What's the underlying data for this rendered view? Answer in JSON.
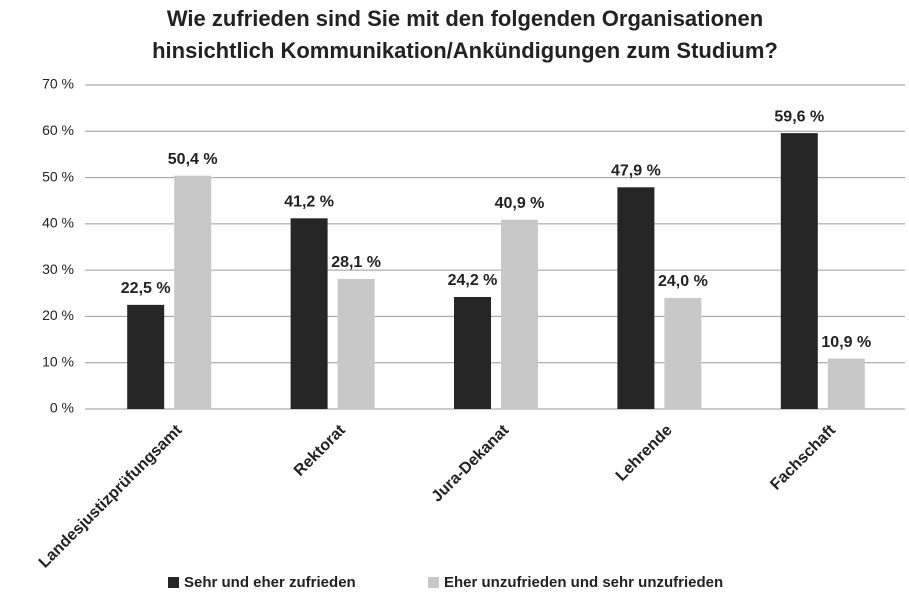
{
  "chart_data": {
    "type": "bar",
    "title": [
      "Wie zufrieden sind Sie mit den folgenden Organisationen",
      "hinsichtlich Kommunikation/Ankündigungen zum Studium?"
    ],
    "categories": [
      "Landesjustizprüfungsamt",
      "Rektorat",
      "Jura-Dekanat",
      "Lehrende",
      "Fachschaft"
    ],
    "series": [
      {
        "name": "Sehr und eher zufrieden",
        "color": "#262626",
        "values": [
          22.5,
          41.2,
          24.2,
          47.9,
          59.6
        ],
        "value_labels": [
          "22,5 %",
          "41,2 %",
          "24,2 %",
          "47,9 %",
          "59,6 %"
        ]
      },
      {
        "name": "Eher unzufrieden und sehr unzufrieden",
        "color": "#c8c8c8",
        "values": [
          50.4,
          28.1,
          40.9,
          24.0,
          10.9
        ],
        "value_labels": [
          "50,4 %",
          "28,1 %",
          "40,9 %",
          "24,0 %",
          "10,9 %"
        ]
      }
    ],
    "ylim": [
      0,
      70
    ],
    "yticks": [
      {
        "value": 0,
        "label": "0 %"
      },
      {
        "value": 10,
        "label": "10 %"
      },
      {
        "value": 20,
        "label": "20 %"
      },
      {
        "value": 30,
        "label": "30 %"
      },
      {
        "value": 40,
        "label": "40 %"
      },
      {
        "value": 50,
        "label": "50 %"
      },
      {
        "value": 60,
        "label": "60 %"
      },
      {
        "value": 70,
        "label": "70 %"
      }
    ],
    "grid": true,
    "legend": "bottom"
  }
}
